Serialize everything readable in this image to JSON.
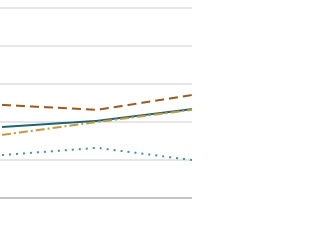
{
  "chart_data": {
    "type": "line",
    "categories": [
      null,
      null,
      null
    ],
    "series": [
      {
        "color": "#a0581a",
        "dash": "9,5",
        "values": [
          2.45,
          2.32,
          2.71
        ]
      },
      {
        "color": "#1f6470",
        "dash": "",
        "values": [
          1.87,
          2.03,
          2.34
        ]
      },
      {
        "color": "#c89a3c",
        "dash": "9,3,2,3",
        "values": [
          1.66,
          2.0,
          2.32
        ]
      },
      {
        "color": "#3a9a8c",
        "dash": "2,5",
        "values": [
          1.13,
          1.32,
          1.0
        ]
      }
    ],
    "ylim": [
      0,
      5
    ],
    "yticks": [
      0,
      1,
      2,
      3,
      4,
      5
    ],
    "grid": true
  }
}
